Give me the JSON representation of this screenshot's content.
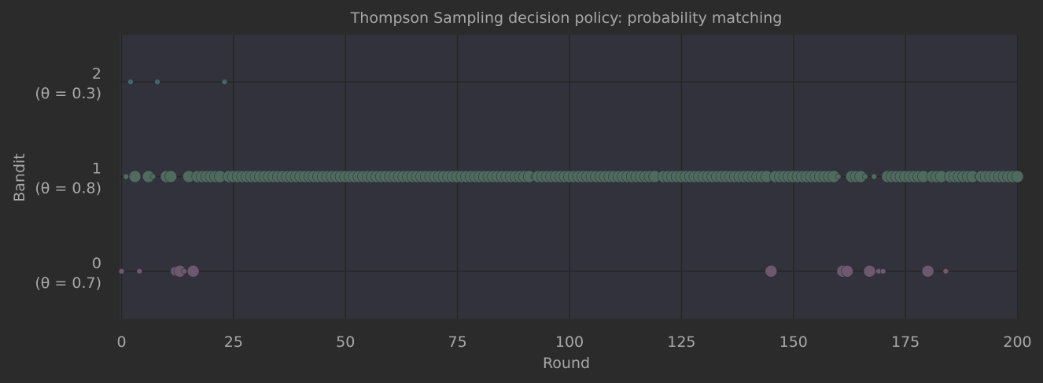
{
  "chart_data": {
    "type": "scatter",
    "title": "Thompson Sampling decision policy: probability matching",
    "xlabel": "Round",
    "ylabel": "Bandit",
    "xlim": [
      0,
      200
    ],
    "ylim": [
      -0.5,
      2.5
    ],
    "grid": true,
    "x_ticks": [
      0,
      25,
      50,
      75,
      100,
      125,
      150,
      175,
      200
    ],
    "y_ticks": [
      {
        "value": 0,
        "label": "0",
        "sublabel": "(θ = 0.7)"
      },
      {
        "value": 1,
        "label": "1",
        "sublabel": "(θ = 0.8)"
      },
      {
        "value": 2,
        "label": "2",
        "sublabel": "(θ = 0.3)"
      }
    ],
    "colors": {
      "background": "#2b2b2b",
      "plot_area": "#32323c",
      "grid": "#262626",
      "bandit_0": "#6d5870",
      "bandit_1": "#4f6b5e",
      "bandit_2": "#44656a"
    },
    "series": [
      {
        "bandit": 0,
        "points": [
          {
            "round": 0,
            "size": "small"
          },
          {
            "round": 4,
            "size": "small"
          },
          {
            "round": 12,
            "size": "medium"
          },
          {
            "round": 13,
            "size": "large"
          },
          {
            "round": 14,
            "size": "small"
          },
          {
            "round": 16,
            "size": "large"
          },
          {
            "round": 145,
            "size": "large"
          },
          {
            "round": 161,
            "size": "large"
          },
          {
            "round": 162,
            "size": "large"
          },
          {
            "round": 167,
            "size": "large"
          },
          {
            "round": 169,
            "size": "small"
          },
          {
            "round": 170,
            "size": "small"
          },
          {
            "round": 180,
            "size": "large"
          },
          {
            "round": 184,
            "size": "small"
          }
        ]
      },
      {
        "bandit": 1,
        "points": [
          {
            "round": 1,
            "size": "small"
          },
          {
            "round": 3,
            "size": "large"
          },
          {
            "round": 6,
            "size": "large"
          },
          {
            "round": 7,
            "size": "small"
          },
          {
            "round": 10,
            "size": "large"
          },
          {
            "round": 11,
            "size": "large"
          },
          {
            "round": 15,
            "size": "large"
          },
          {
            "round": 17,
            "size": "large"
          },
          {
            "round": 18,
            "size": "large"
          },
          {
            "round": 19,
            "size": "large"
          },
          {
            "round": 20,
            "size": "large"
          },
          {
            "round": 21,
            "size": "large"
          },
          {
            "round": 22,
            "size": "large"
          },
          {
            "round": 24,
            "size": "large"
          },
          {
            "round": 25,
            "size": "large"
          },
          {
            "round": 26,
            "size": "large"
          },
          {
            "round": 27,
            "size": "large"
          },
          {
            "round": 28,
            "size": "large"
          },
          {
            "round": 29,
            "size": "large"
          },
          {
            "round": 30,
            "size": "large"
          },
          {
            "round": 31,
            "size": "large"
          },
          {
            "round": 32,
            "size": "large"
          },
          {
            "round": 33,
            "size": "large"
          },
          {
            "round": 34,
            "size": "large"
          },
          {
            "round": 35,
            "size": "large"
          },
          {
            "round": 36,
            "size": "large"
          },
          {
            "round": 37,
            "size": "large"
          },
          {
            "round": 38,
            "size": "large"
          },
          {
            "round": 39,
            "size": "large"
          },
          {
            "round": 40,
            "size": "large"
          },
          {
            "round": 41,
            "size": "large"
          },
          {
            "round": 42,
            "size": "large"
          },
          {
            "round": 43,
            "size": "large"
          },
          {
            "round": 44,
            "size": "large"
          },
          {
            "round": 45,
            "size": "large"
          },
          {
            "round": 46,
            "size": "large"
          },
          {
            "round": 47,
            "size": "large"
          },
          {
            "round": 48,
            "size": "large"
          },
          {
            "round": 49,
            "size": "large"
          },
          {
            "round": 50,
            "size": "large"
          },
          {
            "round": 51,
            "size": "large"
          },
          {
            "round": 52,
            "size": "large"
          },
          {
            "round": 53,
            "size": "large"
          },
          {
            "round": 54,
            "size": "large"
          },
          {
            "round": 55,
            "size": "large"
          },
          {
            "round": 56,
            "size": "large"
          },
          {
            "round": 57,
            "size": "large"
          },
          {
            "round": 58,
            "size": "large"
          },
          {
            "round": 59,
            "size": "large"
          },
          {
            "round": 60,
            "size": "large"
          },
          {
            "round": 61,
            "size": "large"
          },
          {
            "round": 62,
            "size": "large"
          },
          {
            "round": 63,
            "size": "large"
          },
          {
            "round": 64,
            "size": "large"
          },
          {
            "round": 65,
            "size": "large"
          },
          {
            "round": 66,
            "size": "large"
          },
          {
            "round": 67,
            "size": "large"
          },
          {
            "round": 68,
            "size": "large"
          },
          {
            "round": 69,
            "size": "large"
          },
          {
            "round": 70,
            "size": "large"
          },
          {
            "round": 71,
            "size": "large"
          },
          {
            "round": 72,
            "size": "large"
          },
          {
            "round": 73,
            "size": "large"
          },
          {
            "round": 74,
            "size": "large"
          },
          {
            "round": 75,
            "size": "large"
          },
          {
            "round": 76,
            "size": "large"
          },
          {
            "round": 77,
            "size": "large"
          },
          {
            "round": 78,
            "size": "large"
          },
          {
            "round": 79,
            "size": "large"
          },
          {
            "round": 80,
            "size": "large"
          },
          {
            "round": 81,
            "size": "large"
          },
          {
            "round": 82,
            "size": "large"
          },
          {
            "round": 83,
            "size": "large"
          },
          {
            "round": 84,
            "size": "large"
          },
          {
            "round": 85,
            "size": "large"
          },
          {
            "round": 86,
            "size": "large"
          },
          {
            "round": 87,
            "size": "large"
          },
          {
            "round": 88,
            "size": "large"
          },
          {
            "round": 89,
            "size": "large"
          },
          {
            "round": 90,
            "size": "large"
          },
          {
            "round": 91,
            "size": "large"
          },
          {
            "round": 92,
            "size": "small"
          },
          {
            "round": 93,
            "size": "large"
          },
          {
            "round": 94,
            "size": "large"
          },
          {
            "round": 95,
            "size": "large"
          },
          {
            "round": 96,
            "size": "large"
          },
          {
            "round": 97,
            "size": "large"
          },
          {
            "round": 98,
            "size": "large"
          },
          {
            "round": 99,
            "size": "large"
          },
          {
            "round": 100,
            "size": "large"
          },
          {
            "round": 101,
            "size": "large"
          },
          {
            "round": 102,
            "size": "large"
          },
          {
            "round": 103,
            "size": "large"
          },
          {
            "round": 104,
            "size": "large"
          },
          {
            "round": 105,
            "size": "large"
          },
          {
            "round": 106,
            "size": "large"
          },
          {
            "round": 107,
            "size": "large"
          },
          {
            "round": 108,
            "size": "large"
          },
          {
            "round": 109,
            "size": "large"
          },
          {
            "round": 110,
            "size": "large"
          },
          {
            "round": 111,
            "size": "large"
          },
          {
            "round": 112,
            "size": "large"
          },
          {
            "round": 113,
            "size": "large"
          },
          {
            "round": 114,
            "size": "large"
          },
          {
            "round": 115,
            "size": "large"
          },
          {
            "round": 116,
            "size": "large"
          },
          {
            "round": 117,
            "size": "large"
          },
          {
            "round": 118,
            "size": "large"
          },
          {
            "round": 119,
            "size": "large"
          },
          {
            "round": 121,
            "size": "large"
          },
          {
            "round": 122,
            "size": "large"
          },
          {
            "round": 123,
            "size": "large"
          },
          {
            "round": 124,
            "size": "large"
          },
          {
            "round": 125,
            "size": "large"
          },
          {
            "round": 126,
            "size": "large"
          },
          {
            "round": 127,
            "size": "large"
          },
          {
            "round": 128,
            "size": "large"
          },
          {
            "round": 129,
            "size": "large"
          },
          {
            "round": 130,
            "size": "large"
          },
          {
            "round": 131,
            "size": "large"
          },
          {
            "round": 132,
            "size": "large"
          },
          {
            "round": 133,
            "size": "large"
          },
          {
            "round": 134,
            "size": "large"
          },
          {
            "round": 135,
            "size": "large"
          },
          {
            "round": 136,
            "size": "large"
          },
          {
            "round": 137,
            "size": "large"
          },
          {
            "round": 138,
            "size": "large"
          },
          {
            "round": 139,
            "size": "large"
          },
          {
            "round": 140,
            "size": "large"
          },
          {
            "round": 141,
            "size": "large"
          },
          {
            "round": 142,
            "size": "large"
          },
          {
            "round": 143,
            "size": "large"
          },
          {
            "round": 144,
            "size": "large"
          },
          {
            "round": 146,
            "size": "large"
          },
          {
            "round": 147,
            "size": "large"
          },
          {
            "round": 148,
            "size": "large"
          },
          {
            "round": 149,
            "size": "large"
          },
          {
            "round": 150,
            "size": "large"
          },
          {
            "round": 151,
            "size": "large"
          },
          {
            "round": 152,
            "size": "large"
          },
          {
            "round": 153,
            "size": "large"
          },
          {
            "round": 154,
            "size": "large"
          },
          {
            "round": 155,
            "size": "large"
          },
          {
            "round": 156,
            "size": "large"
          },
          {
            "round": 157,
            "size": "large"
          },
          {
            "round": 158,
            "size": "large"
          },
          {
            "round": 159,
            "size": "large"
          },
          {
            "round": 160,
            "size": "small"
          },
          {
            "round": 163,
            "size": "large"
          },
          {
            "round": 164,
            "size": "large"
          },
          {
            "round": 165,
            "size": "large"
          },
          {
            "round": 166,
            "size": "small"
          },
          {
            "round": 168,
            "size": "small"
          },
          {
            "round": 171,
            "size": "large"
          },
          {
            "round": 172,
            "size": "large"
          },
          {
            "round": 173,
            "size": "large"
          },
          {
            "round": 174,
            "size": "large"
          },
          {
            "round": 175,
            "size": "large"
          },
          {
            "round": 176,
            "size": "large"
          },
          {
            "round": 177,
            "size": "large"
          },
          {
            "round": 178,
            "size": "large"
          },
          {
            "round": 179,
            "size": "large"
          },
          {
            "round": 181,
            "size": "large"
          },
          {
            "round": 182,
            "size": "large"
          },
          {
            "round": 183,
            "size": "large"
          },
          {
            "round": 185,
            "size": "large"
          },
          {
            "round": 186,
            "size": "large"
          },
          {
            "round": 187,
            "size": "large"
          },
          {
            "round": 188,
            "size": "large"
          },
          {
            "round": 189,
            "size": "large"
          },
          {
            "round": 190,
            "size": "large"
          },
          {
            "round": 191,
            "size": "small"
          },
          {
            "round": 192,
            "size": "large"
          },
          {
            "round": 193,
            "size": "large"
          },
          {
            "round": 194,
            "size": "large"
          },
          {
            "round": 195,
            "size": "large"
          },
          {
            "round": 196,
            "size": "large"
          },
          {
            "round": 197,
            "size": "large"
          },
          {
            "round": 198,
            "size": "large"
          },
          {
            "round": 199,
            "size": "large"
          },
          {
            "round": 200,
            "size": "large"
          }
        ]
      },
      {
        "bandit": 2,
        "points": [
          {
            "round": 2,
            "size": "small"
          },
          {
            "round": 8,
            "size": "small"
          },
          {
            "round": 23,
            "size": "small"
          }
        ]
      }
    ]
  }
}
